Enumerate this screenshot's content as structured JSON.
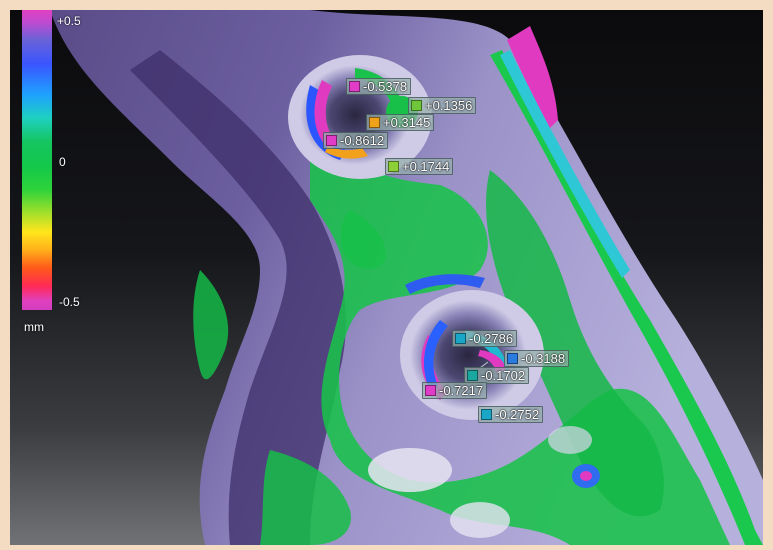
{
  "legend": {
    "max_label": "+0.5",
    "mid_label": "0",
    "min_label": "-0.5",
    "unit_label": "mm"
  },
  "markers": [
    {
      "value": "-0.5378",
      "color": "#e03cc8"
    },
    {
      "value": "+0.1356",
      "color": "#6fc63a"
    },
    {
      "value": "+0.3145",
      "color": "#f0a21a"
    },
    {
      "value": "-0.8612",
      "color": "#e03cc8"
    },
    {
      "value": "+0.1744",
      "color": "#8ccf36"
    },
    {
      "value": "-0.2786",
      "color": "#1aa7c7"
    },
    {
      "value": "-0.3188",
      "color": "#2a7be0"
    },
    {
      "value": "-0.1702",
      "color": "#1aa7a0"
    },
    {
      "value": "-0.7217",
      "color": "#e03cc8"
    },
    {
      "value": "-0.2752",
      "color": "#1aa7c7"
    }
  ]
}
